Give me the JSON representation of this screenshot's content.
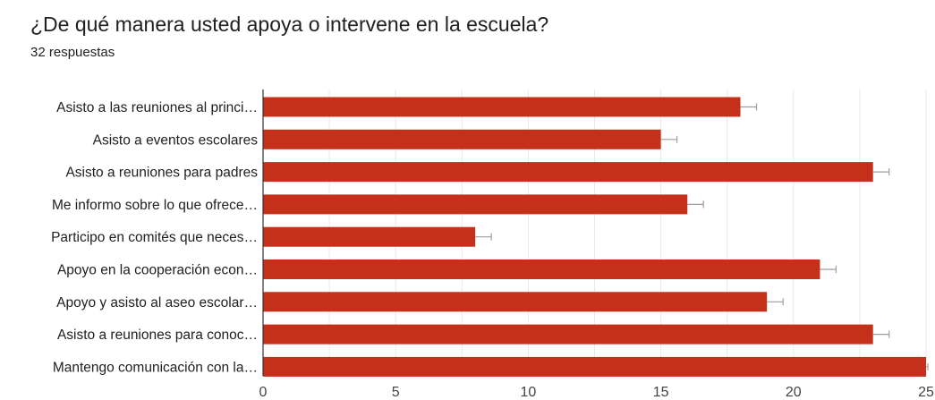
{
  "header": {
    "title": "¿De qué manera usted apoya o intervene en la escuela?",
    "subtitle": "32 respuestas"
  },
  "chart_data": {
    "type": "bar",
    "orientation": "horizontal",
    "bar_color": "#c5301b",
    "error_bar_color": "#9e9e9e",
    "grid": true,
    "xlim": [
      0,
      25
    ],
    "x_ticks": [
      0,
      5,
      10,
      15,
      20,
      25
    ],
    "categories": [
      "Asisto a las reuniones al princi…",
      "Asisto a eventos escolares",
      "Asisto a reuniones para padres",
      "Me informo sobre lo que ofrece…",
      "Participo en comités que neces…",
      "Apoyo en la cooperación econ…",
      "Apoyo y asisto al aseo escolar…",
      "Asisto a reuniones para conoc…",
      "Mantengo comunicación con la…"
    ],
    "values": [
      18,
      15,
      23,
      16,
      8,
      21,
      19,
      23,
      25
    ]
  }
}
